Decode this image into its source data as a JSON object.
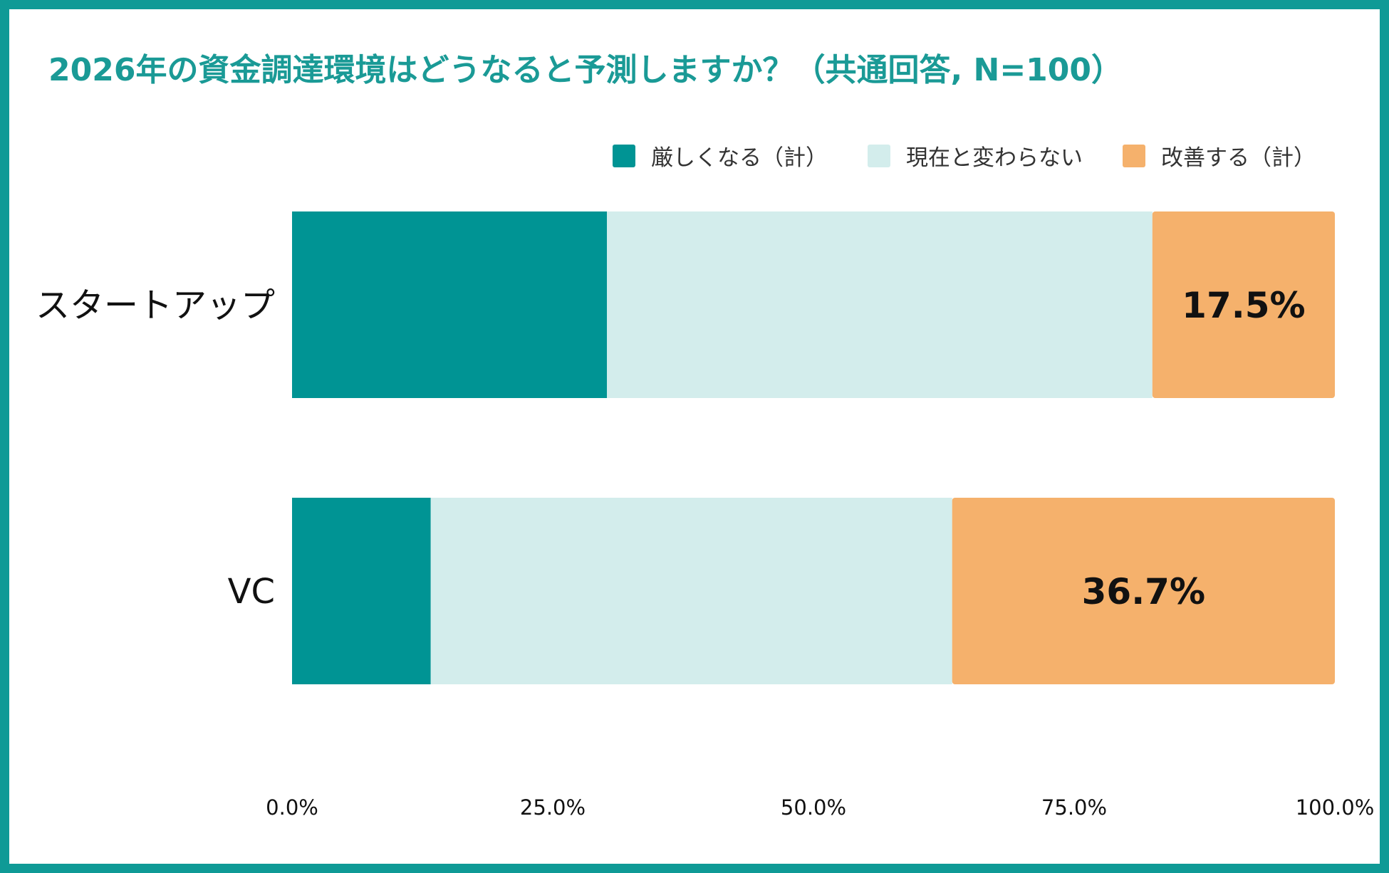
{
  "chart_data": {
    "type": "bar",
    "orientation": "horizontal",
    "stacked": true,
    "title": "2026年の資金調達環境はどうなると予測しますか？（共通回答, N=100）",
    "categories": [
      "スタートアップ",
      "VC"
    ],
    "series": [
      {
        "name": "厳しくなる（計）",
        "color": "#009494",
        "values": [
          30.2,
          13.3
        ]
      },
      {
        "name": "現在と変わらない",
        "color": "#d3edec",
        "values": [
          52.3,
          50.0
        ]
      },
      {
        "name": "改善する（計）",
        "color": "#f5b16c",
        "values": [
          17.5,
          36.7
        ]
      }
    ],
    "data_labels": [
      {
        "category": "スタートアップ",
        "series": "改善する（計）",
        "text": "17.5%"
      },
      {
        "category": "VC",
        "series": "改善する（計）",
        "text": "36.7%"
      }
    ],
    "xlim": [
      0,
      100
    ],
    "xticks": [
      0,
      25,
      50,
      75,
      100
    ],
    "xtick_labels": [
      "0.0%",
      "25.0%",
      "50.0%",
      "75.0%",
      "100.0%"
    ],
    "legend_position": "top-right",
    "grid": false
  },
  "colors": {
    "border": "#0f9a96",
    "title": "#1a9a96"
  }
}
